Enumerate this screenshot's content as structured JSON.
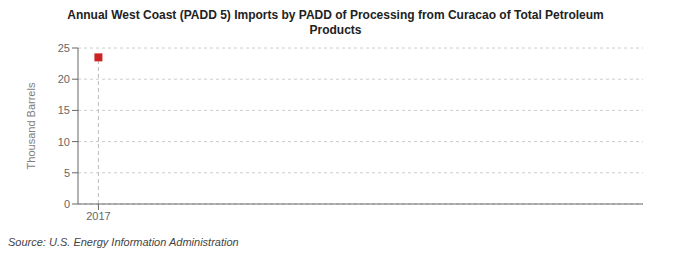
{
  "chart_data": {
    "type": "scatter",
    "title": "Annual West Coast (PADD 5) Imports by PADD of Processing from Curacao of Total Petroleum\nProducts",
    "y_label": "Thousand Barrels",
    "annotations": [
      "Source: U.S. Energy Information Administration"
    ],
    "x": [
      2017
    ],
    "values": [
      23.5
    ],
    "color": "#cc2222",
    "marker": "square",
    "line_style": "none",
    "xlim": [
      2016.7,
      2025.0
    ],
    "xticks": [
      2017
    ],
    "ylim": [
      0,
      25
    ],
    "yticks": [
      0,
      5,
      10,
      15,
      20,
      25
    ],
    "grid": "y"
  }
}
